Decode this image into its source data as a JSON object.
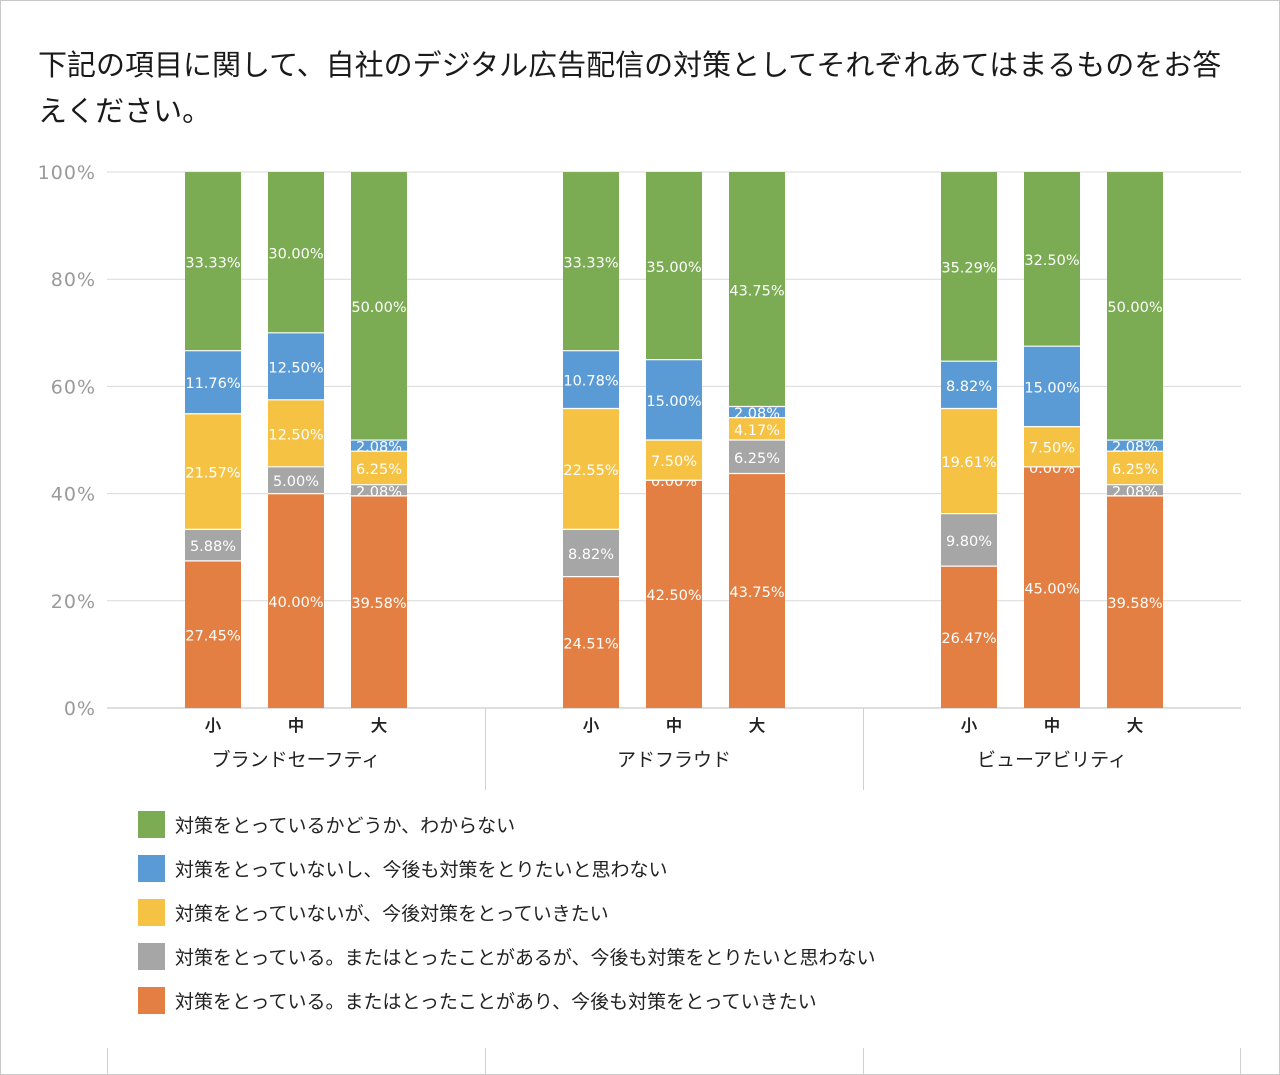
{
  "title": "下記の項目に関して、自社のデジタル広告配信の対策としてそれぞれあてはまるものをお答えください。",
  "chart_data": {
    "type": "bar",
    "stacked": true,
    "title": "下記の項目に関して、自社のデジタル広告配信の対策としてそれぞれあてはまるものをお答えください。",
    "xlabel": "",
    "ylabel": "",
    "ylim": [
      0,
      100
    ],
    "yticks": [
      "0%",
      "20%",
      "40%",
      "60%",
      "80%",
      "100%"
    ],
    "grid": true,
    "legend_position": "bottom",
    "groups": [
      {
        "label": "ブランドセーフティ",
        "sizes": [
          "小",
          "中",
          "大"
        ]
      },
      {
        "label": "アドフラウド",
        "sizes": [
          "小",
          "中",
          "大"
        ]
      },
      {
        "label": "ビューアビリティ",
        "sizes": [
          "小",
          "中",
          "大"
        ]
      }
    ],
    "series": [
      {
        "name": "対策をとっている。またはとったことがあり、今後も対策をとっていきたい",
        "color": "#E37F43",
        "values": [
          27.45,
          40.0,
          39.58,
          24.51,
          42.5,
          43.75,
          26.47,
          45.0,
          39.58
        ],
        "labels": [
          "27.45%",
          "40.00%",
          "39.58%",
          "24.51%",
          "42.50%",
          "43.75%",
          "26.47%",
          "45.00%",
          "39.58%"
        ]
      },
      {
        "name": "対策をとっている。またはとったことがあるが、今後も対策をとりたいと思わない",
        "color": "#A6A6A6",
        "values": [
          5.88,
          5.0,
          2.08,
          8.82,
          0.0,
          6.25,
          9.8,
          0.0,
          2.08
        ],
        "labels": [
          "5.88%",
          "5.00%",
          "2.08%",
          "8.82%",
          "0.00%",
          "6.25%",
          "9.80%",
          "0.00%",
          "2.08%"
        ]
      },
      {
        "name": "対策をとっていないが、今後対策をとっていきたい",
        "color": "#F6C244",
        "values": [
          21.57,
          12.5,
          6.25,
          22.55,
          7.5,
          4.17,
          19.61,
          7.5,
          6.25
        ],
        "labels": [
          "21.57%",
          "12.50%",
          "6.25%",
          "22.55%",
          "7.50%",
          "4.17%",
          "19.61%",
          "7.50%",
          "6.25%"
        ]
      },
      {
        "name": "対策をとっていないし、今後も対策をとりたいと思わない",
        "color": "#5B9BD5",
        "values": [
          11.76,
          12.5,
          2.08,
          10.78,
          15.0,
          2.08,
          8.82,
          15.0,
          2.08
        ],
        "labels": [
          "11.76%",
          "12.50%",
          "2.08%",
          "10.78%",
          "15.00%",
          "2.08%",
          "8.82%",
          "15.00%",
          "2.08%"
        ]
      },
      {
        "name": "対策をとっているかどうか、わからない",
        "color": "#7BAB52",
        "values": [
          33.33,
          30.0,
          50.0,
          33.33,
          35.0,
          43.75,
          35.29,
          32.5,
          50.0
        ],
        "labels": [
          "33.33%",
          "30.00%",
          "50.00%",
          "33.33%",
          "35.00%",
          "43.75%",
          "35.29%",
          "32.50%",
          "50.00%"
        ]
      }
    ],
    "legend_order": [
      4,
      3,
      2,
      1,
      0
    ]
  }
}
